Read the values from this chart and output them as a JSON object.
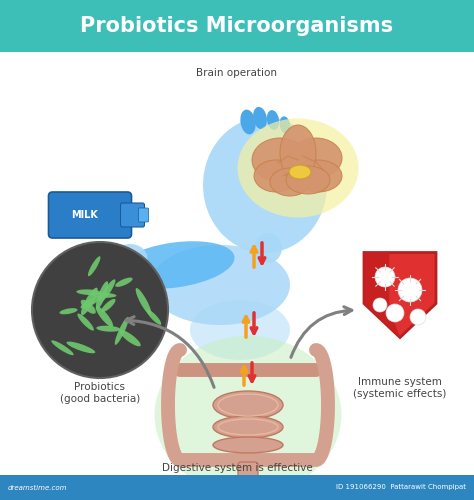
{
  "title": "Probiotics Microorganisms",
  "title_color": "#ffffff",
  "title_bg_color": "#3dbfb8",
  "title_fontsize": 15,
  "bg_color": "#ffffff",
  "footer_bg_color": "#2e86c1",
  "footer_text_left": "dreamstime.com",
  "footer_text_right": "ID 191066290  Pattarawit Chompipat",
  "labels": {
    "brain": "Brain operation",
    "probiotics": "Probiotics\n(good bacteria)",
    "immune": "Immune system\n(systemic effects)",
    "digestive": "Digestive system is effective"
  },
  "kid_color": "#5bb8f5",
  "kid_color2": "#a8d8f8",
  "milk_color": "#2a7ec8",
  "milk_text": "MILK",
  "brain_color": "#d4956e",
  "brain_glow": "#f5f0a0",
  "brain_detail": "#c8804a",
  "brain_center_color": "#f0c840",
  "probiotics_bg": "#404040",
  "bacteria_color": "#6ec86e",
  "immune_color": "#e03030",
  "immune_dark": "#b82020",
  "digestive_color": "#d4a090",
  "digestive_outline": "#c07860",
  "digestive_glow": "#c8f0c0",
  "arrow_up_color": "#f5a020",
  "arrow_dn_color": "#e03030",
  "curve_arrow_color": "#808080",
  "label_color": "#444444",
  "label_fontsize": 7.5
}
